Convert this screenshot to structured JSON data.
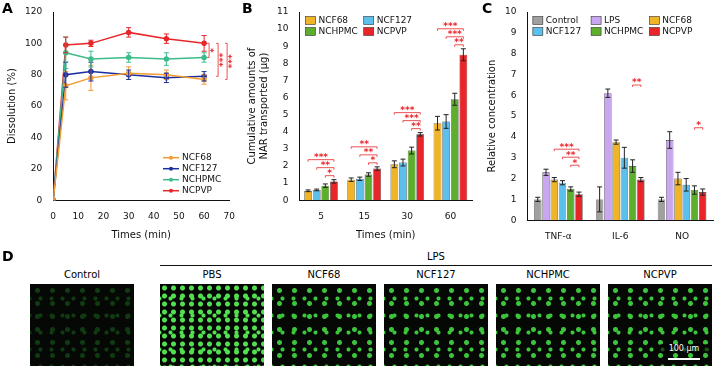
{
  "chart_data": [
    {
      "panel": "A",
      "type": "line",
      "x_label": "Times (min)",
      "y_label": "Dissolution (%)",
      "x": [
        0,
        5,
        15,
        30,
        45,
        60
      ],
      "xlim": [
        0,
        70
      ],
      "xticks": [
        0,
        10,
        20,
        30,
        40,
        50,
        60,
        70
      ],
      "ylim": [
        0,
        120
      ],
      "yticks": [
        0,
        20,
        40,
        60,
        80,
        100,
        120
      ],
      "grid": false,
      "legend": "lower right",
      "series": [
        {
          "name": "NCF68",
          "color": "#f39c32",
          "values": [
            0,
            73,
            78,
            81,
            80,
            77
          ],
          "errors": [
            0,
            9,
            8,
            4,
            3,
            3
          ]
        },
        {
          "name": "NCF127",
          "color": "#1c2fa0",
          "values": [
            0,
            80,
            82,
            80,
            78,
            79
          ],
          "errors": [
            0,
            8,
            6,
            3,
            3,
            3
          ]
        },
        {
          "name": "NCHPMC",
          "color": "#3dbb8a",
          "values": [
            0,
            94,
            90,
            91,
            90,
            91
          ],
          "errors": [
            0,
            10,
            5,
            3,
            4,
            3
          ]
        },
        {
          "name": "NCPVP",
          "color": "#e8262a",
          "values": [
            0,
            99,
            100,
            107,
            103,
            100
          ],
          "errors": [
            0,
            5,
            2,
            3,
            3,
            5
          ]
        }
      ],
      "annotations": [
        {
          "x": 60,
          "texts": [
            "*",
            "***",
            "***"
          ]
        }
      ]
    },
    {
      "panel": "B",
      "type": "bar",
      "x_label": "Times (min)",
      "y_label": [
        "Cumulative amounts of",
        "NAR transported (μg)"
      ],
      "categories": [
        "5",
        "15",
        "30",
        "60"
      ],
      "ylim": [
        0,
        11
      ],
      "yticks": [
        0,
        1,
        2,
        3,
        4,
        5,
        6,
        7,
        8,
        9,
        10,
        11
      ],
      "grid": false,
      "legend": "upper left",
      "series": [
        {
          "name": "NCF68",
          "color": "#f0b428",
          "values": [
            0.55,
            1.2,
            2.1,
            4.5
          ],
          "errors": [
            0.05,
            0.1,
            0.2,
            0.4
          ]
        },
        {
          "name": "NCF127",
          "color": "#5bc0eb",
          "values": [
            0.6,
            1.25,
            2.2,
            4.6
          ],
          "errors": [
            0.05,
            0.1,
            0.2,
            0.4
          ]
        },
        {
          "name": "NCHPMC",
          "color": "#5cae2c",
          "values": [
            0.85,
            1.5,
            2.9,
            5.9
          ],
          "errors": [
            0.1,
            0.1,
            0.2,
            0.35
          ]
        },
        {
          "name": "NCPVP",
          "color": "#e8262a",
          "values": [
            1.1,
            1.85,
            3.85,
            8.5
          ],
          "errors": [
            0.1,
            0.1,
            0.1,
            0.35
          ]
        }
      ],
      "annotations": [
        {
          "category": "5",
          "texts": [
            "*",
            "**",
            "***"
          ]
        },
        {
          "category": "15",
          "texts": [
            "*",
            "**",
            "**"
          ]
        },
        {
          "category": "30",
          "texts": [
            "**",
            "***",
            "***"
          ]
        },
        {
          "category": "60",
          "texts": [
            "**",
            "***",
            "***"
          ]
        }
      ]
    },
    {
      "panel": "C",
      "type": "bar",
      "y_label": "Relative concentration",
      "categories": [
        "TNF-α",
        "IL-6",
        "NO"
      ],
      "ylim": [
        0,
        10
      ],
      "yticks": [
        0,
        1,
        2,
        3,
        4,
        5,
        6,
        7,
        8,
        9,
        10
      ],
      "grid": false,
      "legend": "upper center",
      "series": [
        {
          "name": "Control",
          "color": "#a0a0a0",
          "values": [
            1.0,
            1.0,
            1.0
          ],
          "errors": [
            0.1,
            0.6,
            0.1
          ]
        },
        {
          "name": "LPS",
          "color": "#c9a6f0",
          "values": [
            2.3,
            6.1,
            3.85
          ],
          "errors": [
            0.15,
            0.2,
            0.4
          ]
        },
        {
          "name": "NCF68",
          "color": "#f0b428",
          "values": [
            1.95,
            3.75,
            2.0
          ],
          "errors": [
            0.1,
            0.1,
            0.3
          ]
        },
        {
          "name": "NCF127",
          "color": "#5bc0eb",
          "values": [
            1.8,
            3.0,
            1.7
          ],
          "errors": [
            0.1,
            0.5,
            0.3
          ]
        },
        {
          "name": "NCHPMC",
          "color": "#5cae2c",
          "values": [
            1.5,
            2.6,
            1.45
          ],
          "errors": [
            0.1,
            0.3,
            0.2
          ]
        },
        {
          "name": "NCPVP",
          "color": "#e8262a",
          "values": [
            1.25,
            1.95,
            1.35
          ],
          "errors": [
            0.1,
            0.1,
            0.15
          ]
        }
      ],
      "annotations": [
        {
          "category": "TNF-α",
          "texts": [
            "*",
            "**",
            "***"
          ]
        },
        {
          "category": "IL-6",
          "texts": [
            "**"
          ]
        },
        {
          "category": "NO",
          "texts": [
            "*"
          ]
        }
      ]
    }
  ],
  "image_panel": {
    "panel": "D",
    "labels": [
      "Control",
      "PBS",
      "NCF68",
      "NCF127",
      "NCHPMC",
      "NCPVP"
    ],
    "group_label": "LPS",
    "scale_bar": "100 μm"
  }
}
